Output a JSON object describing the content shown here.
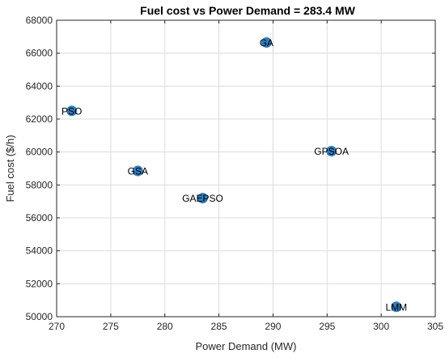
{
  "chart_data": {
    "type": "scatter",
    "title": "Fuel cost vs Power Demand = 283.4 MW",
    "xlabel": "Power Demand (MW)",
    "ylabel": "Fuel cost ($/h)",
    "xlim": [
      270,
      305
    ],
    "ylim": [
      50000,
      68000
    ],
    "xticks": [
      270,
      275,
      280,
      285,
      290,
      295,
      300,
      305
    ],
    "yticks": [
      50000,
      52000,
      54000,
      56000,
      58000,
      60000,
      62000,
      64000,
      66000,
      68000
    ],
    "grid": true,
    "marker_color": "#2e7ebf",
    "points": [
      {
        "label": "PSO",
        "x": 271.4,
        "y": 62500
      },
      {
        "label": "GSA",
        "x": 277.5,
        "y": 58850
      },
      {
        "label": "GAEPSO",
        "x": 283.5,
        "y": 57200
      },
      {
        "label": "GA",
        "x": 289.4,
        "y": 66650
      },
      {
        "label": "GPSOA",
        "x": 295.4,
        "y": 60050
      },
      {
        "label": "LMM",
        "x": 301.4,
        "y": 50600
      }
    ]
  }
}
